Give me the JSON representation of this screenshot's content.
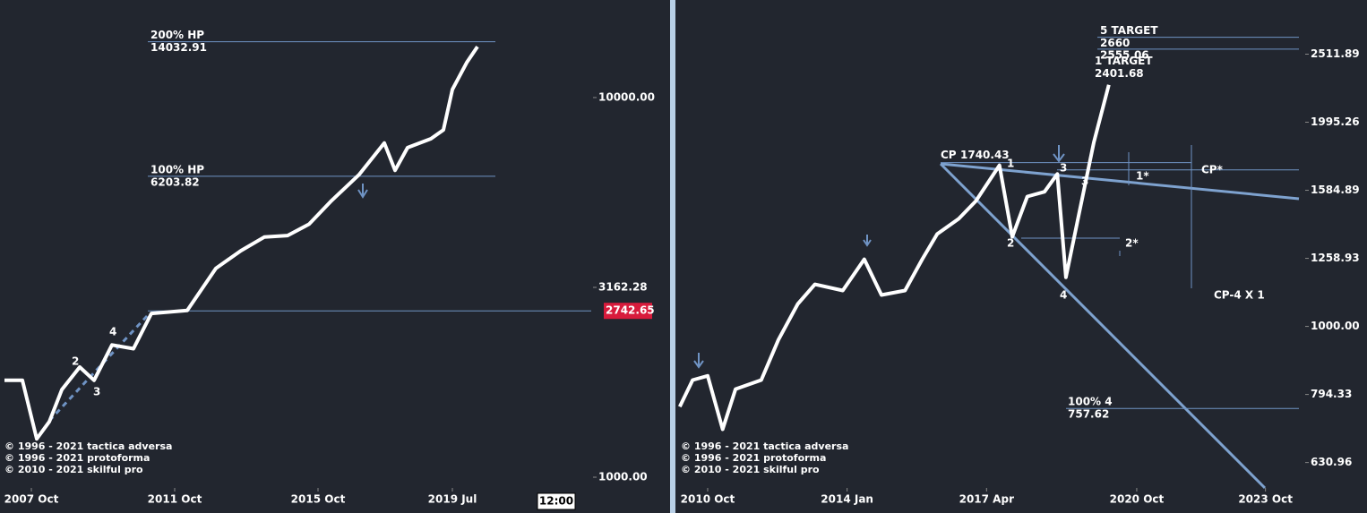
{
  "chart_data": [
    {
      "type": "line",
      "log_scale": true,
      "color": "#ffffff",
      "level_color": "#6f93c4",
      "x": [
        2007.0,
        2007.5,
        2007.9,
        2008.25,
        2008.6,
        2009.1,
        2009.5,
        2010.0,
        2010.6,
        2011.1,
        2012.1,
        2012.9,
        2013.6,
        2014.25,
        2014.9,
        2015.5,
        2016.1,
        2016.9,
        2017.6,
        2017.9,
        2018.25,
        2018.9,
        2019.25,
        2019.5,
        2019.9,
        2020.2
      ],
      "values": [
        1800,
        1800,
        1262,
        1400,
        1700,
        1950,
        1800,
        2230,
        2180,
        2700,
        2750,
        3550,
        3950,
        4290,
        4330,
        4640,
        5320,
        6270,
        7590,
        6430,
        7380,
        7790,
        8220,
        10500,
        12360,
        13620
      ],
      "xlim": [
        2006.875,
        2023.375
      ],
      "ylim": [
        937,
        18070
      ],
      "xticks": [
        {
          "value": 2007.75,
          "label": "2007 Oct"
        },
        {
          "value": 2011.75,
          "label": "2011 Oct"
        },
        {
          "value": 2015.75,
          "label": "2015 Oct"
        },
        {
          "value": 2019.5,
          "label": "2019 Jul"
        }
      ],
      "yticks": [
        {
          "value": 1000,
          "label": "1000.00"
        },
        {
          "value": 3162.28,
          "label": "3162.28"
        },
        {
          "value": 10000,
          "label": "10000.00"
        }
      ],
      "levels": [
        {
          "name": "200% HP",
          "value": 14032.91
        },
        {
          "name": "100% HP",
          "value": 6203.82
        }
      ],
      "price_tag": {
        "value": 2742.65,
        "color": "#d81b3c"
      },
      "annotations": [
        "2",
        "3",
        "4"
      ],
      "notes": [
        "© 1996 - 2021 tactica adversa",
        "© 1996 - 2021 protoforma",
        "© 2010 - 2021 skilful pro"
      ],
      "clock": "12:00"
    },
    {
      "type": "line",
      "log_scale": true,
      "color": "#ffffff",
      "level_color": "#6f93c4",
      "x": [
        2010.1,
        2010.4,
        2010.75,
        2011.1,
        2011.4,
        2012.0,
        2012.4,
        2012.85,
        2013.25,
        2013.9,
        2014.4,
        2014.8,
        2015.35,
        2015.75,
        2016.1,
        2016.6,
        2017.0,
        2017.55,
        2017.85,
        2018.2,
        2018.6,
        2018.9,
        2019.1,
        2019.4,
        2019.75,
        2020.1
      ],
      "values": [
        762,
        834,
        846,
        706,
        809,
        834,
        956,
        1079,
        1153,
        1129,
        1255,
        1112,
        1129,
        1255,
        1367,
        1439,
        1528,
        1725,
        1354,
        1552,
        1577,
        1675,
        1181,
        1459,
        1862,
        2265
      ],
      "xlim": [
        2010.02,
        2024.53
      ],
      "ylim": [
        579,
        3017
      ],
      "xticks": [
        {
          "value": 2010.75,
          "label": "2010 Oct"
        },
        {
          "value": 2014.0,
          "label": "2014 Jan"
        },
        {
          "value": 2017.25,
          "label": "2017 Apr"
        },
        {
          "value": 2020.75,
          "label": "2020 Oct"
        },
        {
          "value": 2023.75,
          "label": "2023 Oct"
        }
      ],
      "yticks": [
        630.96,
        794.33,
        {
          "value": 1000,
          "label": "1000.00"
        },
        1258.93,
        1584.89,
        1995.26,
        2511.89
      ],
      "levels": [
        {
          "name": "5 TARGET",
          "value": 2660
        },
        {
          "value": 2555.06
        },
        {
          "name": "1 TARGET",
          "value": 2401.68
        },
        {
          "name": "CP",
          "value": 1740.43
        },
        {
          "value": 1698
        },
        {
          "name": "100%  4",
          "value": 757.62
        }
      ],
      "annotations": [
        "1",
        "2",
        "3",
        "3",
        "4",
        "1*",
        "2*",
        "CP*",
        "CP-4 X 1"
      ],
      "notes": [
        "© 1996 - 2021 tactica adversa",
        "© 1996 - 2021 protoforma",
        "© 2010 - 2021 skilful pro"
      ]
    }
  ]
}
